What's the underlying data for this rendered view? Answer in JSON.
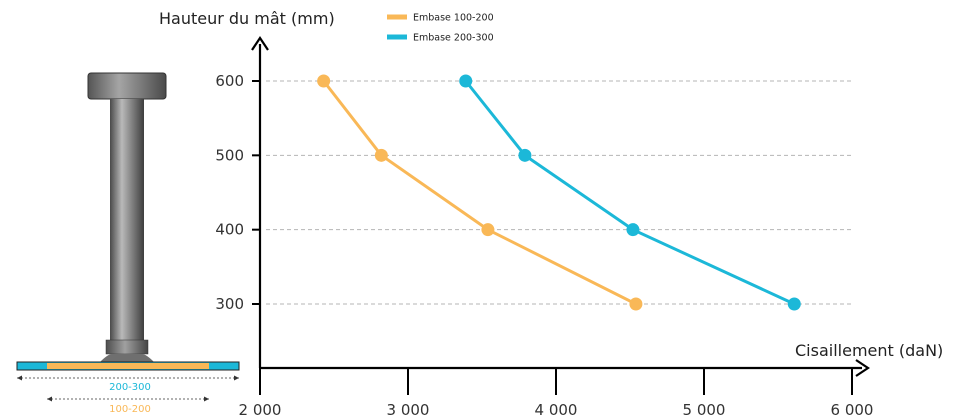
{
  "chart_data": {
    "type": "line",
    "xlabel": "Cisaillement (daN)",
    "ylabel": "Hauteur du mât (mm)",
    "xlim": [
      2000,
      6000
    ],
    "ylim": [
      250,
      650
    ],
    "x_ticks": [
      2000,
      3000,
      4000,
      5000,
      6000
    ],
    "x_tick_labels": [
      "2 000",
      "3 000",
      "4 000",
      "5 000",
      "6 000"
    ],
    "y_ticks": [
      300,
      400,
      500,
      600
    ],
    "y_tick_labels": [
      "300",
      "400",
      "500",
      "600"
    ],
    "grid": "horizontal dashed",
    "legend_position": "top",
    "series": [
      {
        "name": "Embase 100-200",
        "color": "#F9B857",
        "points": [
          {
            "x": 2430,
            "y": 600
          },
          {
            "x": 2820,
            "y": 500
          },
          {
            "x": 3540,
            "y": 400
          },
          {
            "x": 4540,
            "y": 300
          }
        ]
      },
      {
        "name": "Embase 200-300",
        "color": "#1CB8D8",
        "points": [
          {
            "x": 3390,
            "y": 600
          },
          {
            "x": 3790,
            "y": 500
          },
          {
            "x": 4520,
            "y": 400
          },
          {
            "x": 5610,
            "y": 300
          }
        ]
      }
    ]
  },
  "illustration": {
    "label_outer": "200-300",
    "label_inner": "100-200",
    "label_outer_color": "#1CB8D8",
    "label_inner_color": "#F9B857"
  }
}
